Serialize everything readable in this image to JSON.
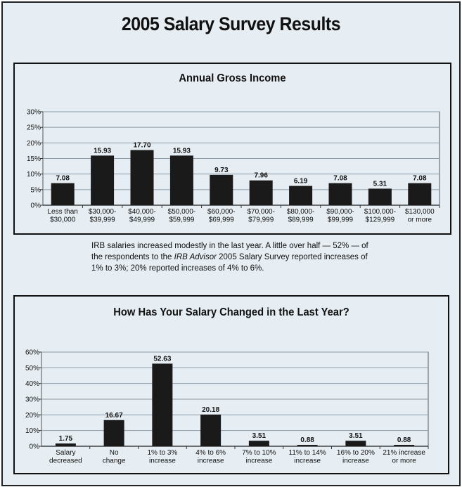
{
  "page_title": "2005 Salary Survey Results",
  "caption": {
    "part1": "IRB salaries increased modestly in the last year. A little over half — 52% — of the respondents to the ",
    "italic": "IRB Advisor",
    "part2": " 2005 Salary Survey reported increases of 1% to 3%; 20% reported increases of 4% to 6%."
  },
  "colors": {
    "bar": "#1a1a1a",
    "grid": "#8a9aa6",
    "panel_bg": "#e6eef3"
  },
  "chart_data": [
    {
      "type": "bar",
      "title": "Annual Gross Income",
      "categories": [
        [
          "Less than",
          "$30,000"
        ],
        [
          "$30,000-",
          "$39,999"
        ],
        [
          "$40,000-",
          "$49,999"
        ],
        [
          "$50,000-",
          "$59,999"
        ],
        [
          "$60,000-",
          "$69,999"
        ],
        [
          "$70,000-",
          "$79,999"
        ],
        [
          "$80,000-",
          "$89,999"
        ],
        [
          "$90,000-",
          "$99,999"
        ],
        [
          "$100,000-",
          "$129,999"
        ],
        [
          "$130,000",
          "or more"
        ]
      ],
      "values": [
        7.08,
        15.93,
        17.7,
        15.93,
        9.73,
        7.96,
        6.19,
        7.08,
        5.31,
        7.08
      ],
      "value_labels": [
        "7.08",
        "15.93",
        "17.70",
        "15.93",
        "9.73",
        "7.96",
        "6.19",
        "7.08",
        "5.31",
        "7.08"
      ],
      "ylim": [
        0,
        30
      ],
      "yticks": [
        0,
        5,
        10,
        15,
        20,
        25,
        30
      ],
      "ytick_labels": [
        "0%",
        "5%",
        "10%",
        "15%",
        "20%",
        "25%",
        "30%"
      ],
      "grid": true
    },
    {
      "type": "bar",
      "title": "How Has Your Salary Changed in the Last Year?",
      "categories": [
        [
          "Salary",
          "decreased"
        ],
        [
          "No",
          "change"
        ],
        [
          "1% to 3%",
          "increase"
        ],
        [
          "4% to 6%",
          "increase"
        ],
        [
          "7% to 10%",
          "increase"
        ],
        [
          "11% to 14%",
          "increase"
        ],
        [
          "16% to 20%",
          "increase"
        ],
        [
          "21% increase",
          "or more"
        ]
      ],
      "values": [
        1.75,
        16.67,
        52.63,
        20.18,
        3.51,
        0.88,
        3.51,
        0.88
      ],
      "value_labels": [
        "1.75",
        "16.67",
        "52.63",
        "20.18",
        "3.51",
        "0.88",
        "3.51",
        "0.88"
      ],
      "ylim": [
        0,
        60
      ],
      "yticks": [
        0,
        10,
        20,
        30,
        40,
        50,
        60
      ],
      "ytick_labels": [
        "0%",
        "10%",
        "20%",
        "30%",
        "40%",
        "50%",
        "60%"
      ],
      "grid": true
    }
  ]
}
